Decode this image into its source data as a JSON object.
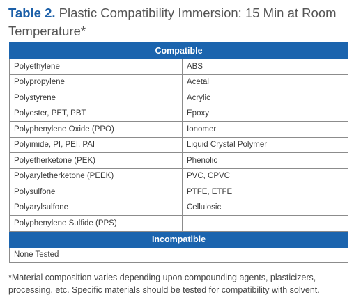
{
  "title": {
    "label": "Table 2.",
    "text": "Plastic Compatibility Immersion: 15 Min at Room Temperature*"
  },
  "compatible": {
    "heading": "Compatible",
    "rows": [
      [
        "Polyethylene",
        "ABS"
      ],
      [
        "Polypropylene",
        "Acetal"
      ],
      [
        "Polystyrene",
        "Acrylic"
      ],
      [
        "Polyester, PET, PBT",
        "Epoxy"
      ],
      [
        "Polyphenylene Oxide (PPO)",
        "Ionomer"
      ],
      [
        "Polyimide, PI, PEI, PAI",
        "Liquid Crystal Polymer"
      ],
      [
        "Polyetherketone (PEK)",
        "Phenolic"
      ],
      [
        "Polyaryletherketone (PEEK)",
        "PVC, CPVC"
      ],
      [
        "Polysulfone",
        "PTFE, ETFE"
      ],
      [
        "Polyarylsulfone",
        "Cellulosic"
      ],
      [
        "Polyphenylene Sulfide (PPS)",
        ""
      ]
    ]
  },
  "incompatible": {
    "heading": "Incompatible",
    "rows": [
      [
        "None Tested"
      ]
    ]
  },
  "footnote": "*Material composition varies depending upon compounding agents, plasticizers, processing, etc. Specific materials should be tested for compatibility with solvent."
}
